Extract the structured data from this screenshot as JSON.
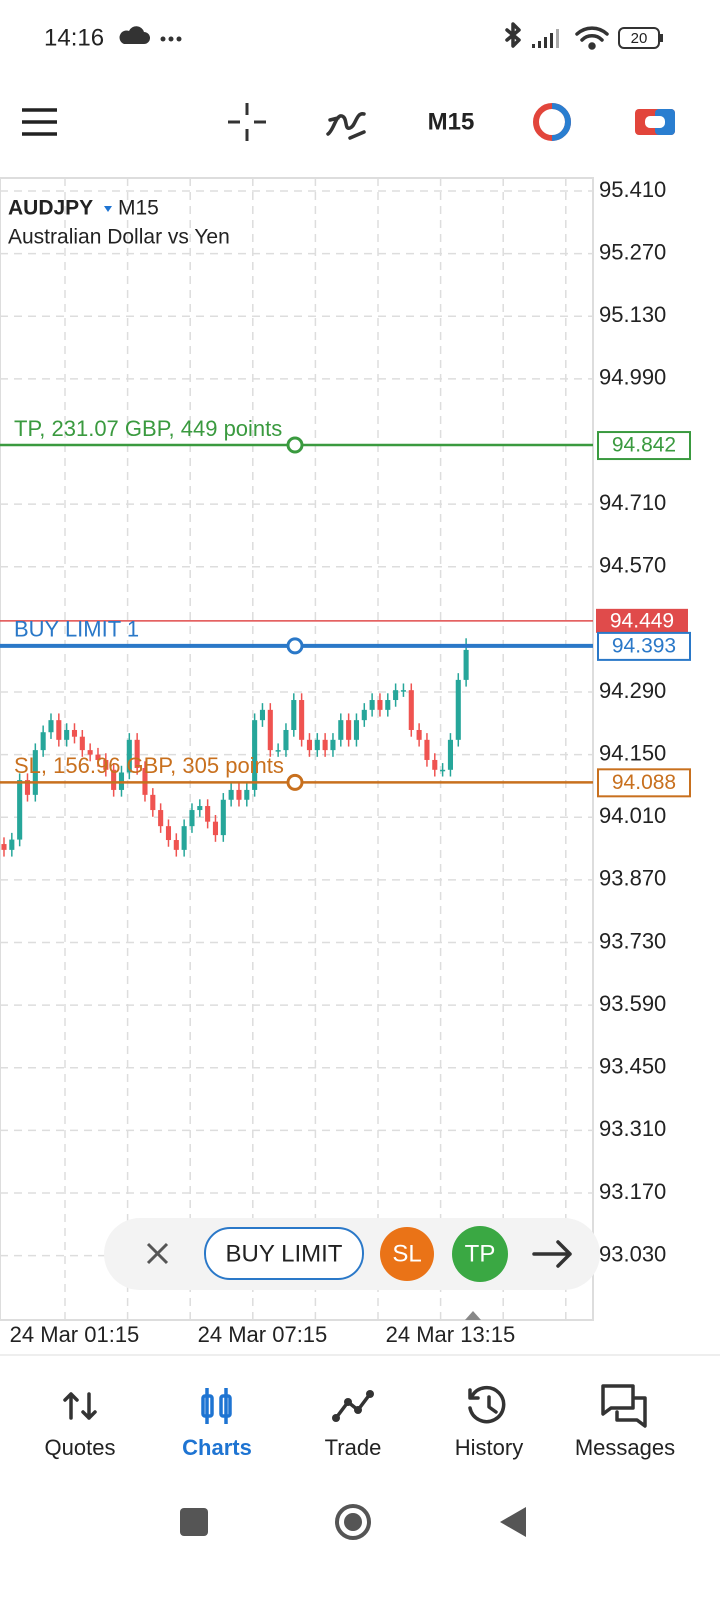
{
  "status_bar": {
    "time": "14:16",
    "battery": "20"
  },
  "toolbar": {
    "timeframe": "M15"
  },
  "chart_data": {
    "type": "candlestick",
    "symbol": "AUDJPY",
    "timeframe": "M15",
    "description": "Australian Dollar vs Yen",
    "up_color": "#26a69a",
    "down_color": "#ef5350",
    "open": [
      93.95,
      93.937,
      93.96,
      94.093,
      94.06,
      94.16,
      94.2,
      94.227,
      94.183,
      94.205,
      94.19,
      94.16,
      94.15,
      94.138,
      94.116,
      94.071,
      94.11,
      94.183,
      94.12,
      94.06,
      94.026,
      93.99,
      93.959,
      93.937,
      93.99,
      94.026,
      94.035,
      94.0,
      93.97,
      94.049,
      94.071,
      94.049,
      94.071,
      94.227,
      94.25,
      94.16,
      94.16,
      94.205,
      94.272,
      94.183,
      94.16,
      94.183,
      94.16,
      94.183,
      94.227,
      94.183,
      94.227,
      94.25,
      94.272,
      94.25,
      94.272,
      94.294,
      94.294,
      94.205,
      94.183,
      94.138,
      94.116,
      94.116,
      94.183,
      94.317
    ],
    "high": [
      93.965,
      93.975,
      94.108,
      94.108,
      94.175,
      94.215,
      94.242,
      94.242,
      94.22,
      94.22,
      94.205,
      94.175,
      94.165,
      94.153,
      94.131,
      94.125,
      94.198,
      94.198,
      94.135,
      94.075,
      94.041,
      94.005,
      93.974,
      94.005,
      94.041,
      94.05,
      94.05,
      94.015,
      94.064,
      94.086,
      94.086,
      94.086,
      94.242,
      94.265,
      94.265,
      94.175,
      94.22,
      94.287,
      94.287,
      94.198,
      94.198,
      94.198,
      94.198,
      94.242,
      94.242,
      94.242,
      94.265,
      94.287,
      94.287,
      94.287,
      94.309,
      94.309,
      94.309,
      94.22,
      94.198,
      94.153,
      94.131,
      94.198,
      94.332,
      94.41
    ],
    "low": [
      93.922,
      93.922,
      93.945,
      94.045,
      94.045,
      94.145,
      94.185,
      94.168,
      94.168,
      94.175,
      94.145,
      94.135,
      94.123,
      94.101,
      94.056,
      94.056,
      94.095,
      94.105,
      94.045,
      94.011,
      93.975,
      93.944,
      93.922,
      93.922,
      93.975,
      94.011,
      93.985,
      93.955,
      93.955,
      94.034,
      94.034,
      94.034,
      94.056,
      94.212,
      94.145,
      94.145,
      94.145,
      94.19,
      94.168,
      94.145,
      94.145,
      94.145,
      94.145,
      94.168,
      94.168,
      94.168,
      94.212,
      94.235,
      94.235,
      94.235,
      94.257,
      94.279,
      94.19,
      94.168,
      94.123,
      94.101,
      94.101,
      94.101,
      94.168,
      94.302
    ],
    "close": [
      93.937,
      93.96,
      94.093,
      94.06,
      94.16,
      94.2,
      94.227,
      94.183,
      94.205,
      94.19,
      94.16,
      94.15,
      94.138,
      94.116,
      94.071,
      94.11,
      94.183,
      94.12,
      94.06,
      94.026,
      93.99,
      93.959,
      93.937,
      93.99,
      94.026,
      94.035,
      94.0,
      93.97,
      94.049,
      94.071,
      94.049,
      94.071,
      94.227,
      94.25,
      94.16,
      94.16,
      94.205,
      94.272,
      94.183,
      94.16,
      94.183,
      94.16,
      94.183,
      94.227,
      94.183,
      94.227,
      94.25,
      94.272,
      94.25,
      94.272,
      94.294,
      94.294,
      94.205,
      94.183,
      94.138,
      94.116,
      94.116,
      94.183,
      94.317,
      94.384
    ],
    "xlim": [
      -0.51,
      75.2
    ],
    "xticks": [
      {
        "value": 9,
        "label": "24 Mar 01:15"
      },
      {
        "value": 33,
        "label": "24 Mar 07:15"
      },
      {
        "value": 57,
        "label": "24 Mar 13:15"
      }
    ],
    "ylim": [
      92.886,
      95.439
    ],
    "yticks": [
      {
        "value": 95.41,
        "label": "95.410"
      },
      {
        "value": 95.27,
        "label": "95.270"
      },
      {
        "value": 95.13,
        "label": "95.130"
      },
      {
        "value": 94.99,
        "label": "94.990"
      },
      {
        "value": 94.71,
        "label": "94.710"
      },
      {
        "value": 94.57,
        "label": "94.570"
      },
      {
        "value": 94.29,
        "label": "94.290"
      },
      {
        "value": 94.15,
        "label": "94.150"
      },
      {
        "value": 94.01,
        "label": "94.010"
      },
      {
        "value": 93.87,
        "label": "93.870"
      },
      {
        "value": 93.73,
        "label": "93.730"
      },
      {
        "value": 93.59,
        "label": "93.590"
      },
      {
        "value": 93.45,
        "label": "93.450"
      },
      {
        "value": 93.31,
        "label": "93.310"
      },
      {
        "value": 93.17,
        "label": "93.170"
      },
      {
        "value": 93.03,
        "label": "93.030"
      }
    ],
    "grid": true,
    "levels": [
      {
        "name": "TP, 231.07 GBP, 449 points",
        "value": 94.842,
        "color": "#3a9a3f"
      },
      {
        "name": "BUY LIMIT 1",
        "value": 94.393,
        "color": "#2a78c8"
      },
      {
        "name": "SL, 156.96 GBP, 305 points",
        "value": 94.088,
        "color": "#c8701e"
      }
    ],
    "bid": {
      "value": 94.449,
      "color": "#e04b4b"
    }
  },
  "order_panel": {
    "order_type": "BUY LIMIT",
    "sl": "SL",
    "tp": "TP"
  },
  "nav": [
    "Quotes",
    "Charts",
    "Trade",
    "History",
    "Messages"
  ]
}
